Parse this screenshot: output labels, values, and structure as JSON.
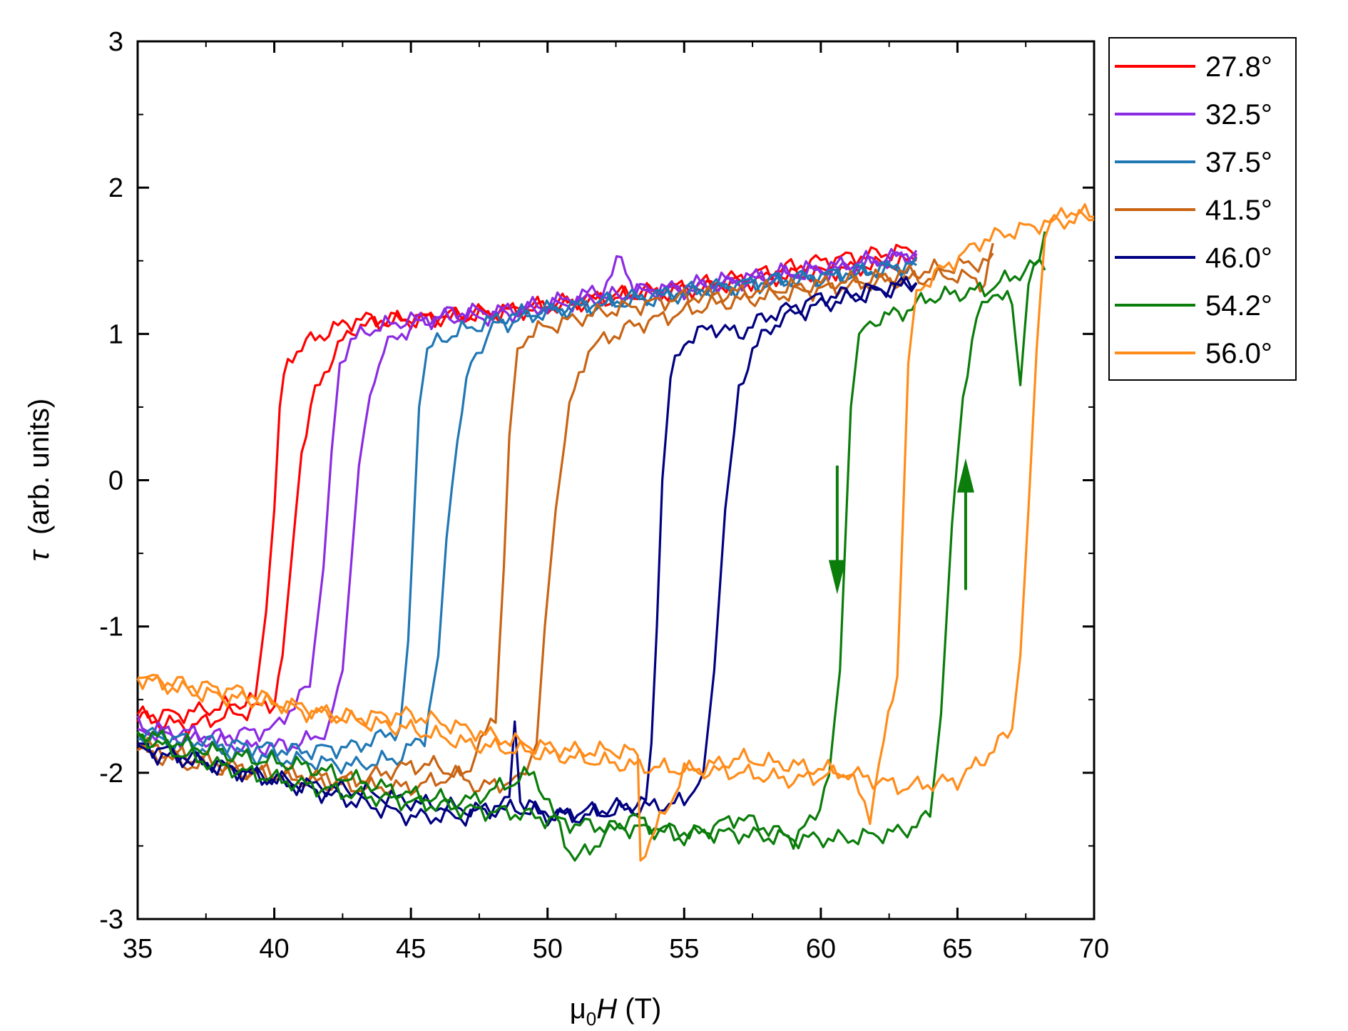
{
  "chart_data": {
    "type": "line",
    "title": "",
    "xlabel": {
      "prefix": "μ",
      "sub": "0",
      "italic": "H",
      "suffix": " (T)"
    },
    "ylabel": {
      "italic": "τ",
      "suffix": "  (arb. units)"
    },
    "xlim": [
      35,
      70
    ],
    "ylim": [
      -3,
      3
    ],
    "xticks": [
      35,
      40,
      45,
      50,
      55,
      60,
      65,
      70
    ],
    "yticks": [
      -3,
      -2,
      -1,
      0,
      1,
      2,
      3
    ],
    "xtick_labels": [
      "35",
      "40",
      "45",
      "50",
      "55",
      "60",
      "65",
      "70"
    ],
    "ytick_labels": [
      "-3",
      "-2",
      "-1",
      "0",
      "1",
      "2",
      "3"
    ],
    "grid": false,
    "legend_position": "outside-top-right",
    "series": [
      {
        "name": "27.8°",
        "color": "#ff0000",
        "up": {
          "x": [
            35,
            36,
            37,
            38,
            39,
            40,
            40.3,
            40.6,
            41,
            41.5,
            42,
            42.5,
            43,
            44,
            45,
            47,
            50,
            53,
            56,
            58,
            60,
            62,
            63.5
          ],
          "y": [
            -1.62,
            -1.66,
            -1.68,
            -1.62,
            -1.58,
            -1.52,
            -1.2,
            -0.6,
            0.2,
            0.6,
            0.8,
            0.95,
            1.05,
            1.08,
            1.1,
            1.12,
            1.18,
            1.26,
            1.32,
            1.38,
            1.42,
            1.47,
            1.5
          ]
        },
        "down": {
          "x": [
            63.5,
            60,
            56,
            52,
            48,
            45,
            43,
            42,
            41,
            40.5,
            40.2,
            40,
            39.7,
            39.3,
            38,
            36.5,
            35
          ],
          "y": [
            1.58,
            1.5,
            1.35,
            1.25,
            1.15,
            1.1,
            1.1,
            1.02,
            0.92,
            0.82,
            0.5,
            -0.2,
            -0.9,
            -1.5,
            -1.55,
            -1.6,
            -1.6
          ]
        }
      },
      {
        "name": "32.5°",
        "color": "#8b2be2",
        "up": {
          "x": [
            35,
            36,
            37.5,
            39,
            40,
            41,
            42,
            42.5,
            42.8,
            43.1,
            43.5,
            44,
            45,
            46.5,
            48,
            50,
            52,
            52.7,
            53.2,
            55,
            58,
            61,
            63.5
          ],
          "y": [
            -1.68,
            -1.75,
            -1.78,
            -1.83,
            -1.82,
            -1.8,
            -1.7,
            -1.3,
            -0.6,
            0.1,
            0.6,
            0.9,
            1.05,
            1.15,
            1.15,
            1.2,
            1.3,
            1.52,
            1.3,
            1.3,
            1.38,
            1.45,
            1.55
          ]
        },
        "down": {
          "x": [
            63.5,
            60,
            56,
            52,
            48,
            45,
            43.5,
            42.8,
            42.4,
            42.1,
            41.8,
            41.3,
            40,
            38,
            36.5,
            35
          ],
          "y": [
            1.55,
            1.45,
            1.35,
            1.25,
            1.12,
            1.1,
            1.03,
            0.95,
            0.8,
            0.2,
            -0.6,
            -1.4,
            -1.7,
            -1.75,
            -1.72,
            -1.7
          ]
        }
      },
      {
        "name": "37.5°",
        "color": "#1f77b4",
        "up": {
          "x": [
            35,
            37,
            39,
            41,
            43,
            44.5,
            45.5,
            46,
            46.3,
            46.7,
            47.2,
            48,
            50,
            53,
            56,
            59,
            61,
            63.5
          ],
          "y": [
            -1.75,
            -1.82,
            -1.88,
            -1.92,
            -1.95,
            -1.9,
            -1.75,
            -1.2,
            -0.4,
            0.3,
            0.8,
            1.05,
            1.15,
            1.22,
            1.3,
            1.36,
            1.4,
            1.47
          ]
        },
        "down": {
          "x": [
            63.5,
            60,
            56,
            52,
            48.5,
            46.5,
            45.6,
            45.3,
            45.1,
            44.9,
            44.6,
            43,
            41,
            39,
            37,
            35
          ],
          "y": [
            1.47,
            1.4,
            1.32,
            1.22,
            1.12,
            1.0,
            0.9,
            0.5,
            -0.3,
            -1.1,
            -1.7,
            -1.82,
            -1.85,
            -1.82,
            -1.78,
            -1.72
          ]
        }
      },
      {
        "name": "41.5°",
        "color": "#c86414",
        "up": {
          "x": [
            35,
            37,
            39,
            41,
            43,
            45,
            46,
            47.5,
            49,
            49.6,
            49.9,
            50.3,
            50.8,
            51.5,
            53,
            56,
            59,
            62,
            65,
            66,
            66.3
          ],
          "y": [
            -1.8,
            -1.9,
            -1.98,
            -2.02,
            -2.05,
            -1.95,
            -1.95,
            -2.1,
            -2.05,
            -1.8,
            -1.0,
            -0.2,
            0.5,
            0.9,
            1.05,
            1.2,
            1.28,
            1.35,
            1.4,
            1.35,
            1.62
          ]
        },
        "down": {
          "x": [
            66.3,
            62,
            58,
            55,
            52,
            50,
            49.3,
            48.9,
            48.6,
            48.4,
            48.1,
            47,
            45,
            43,
            41,
            39,
            37,
            35
          ],
          "y": [
            1.5,
            1.38,
            1.3,
            1.25,
            1.15,
            1.05,
            1.0,
            0.9,
            0.3,
            -0.6,
            -1.6,
            -2.0,
            -2.1,
            -2.1,
            -2.05,
            -2.0,
            -1.95,
            -1.85
          ]
        }
      },
      {
        "name": "46.0°",
        "color": "#000080",
        "up": {
          "x": [
            35,
            37,
            39,
            41,
            43,
            45,
            47,
            49,
            51,
            53,
            55,
            55.7,
            56.1,
            56.5,
            57,
            57.5,
            58.5,
            60,
            62,
            63.5
          ],
          "y": [
            -1.85,
            -1.92,
            -2.0,
            -2.08,
            -2.12,
            -2.2,
            -2.25,
            -2.25,
            -2.3,
            -2.25,
            -2.2,
            -2.0,
            -1.3,
            -0.2,
            0.6,
            0.9,
            1.1,
            1.2,
            1.28,
            1.35
          ]
        },
        "down": {
          "x": [
            63.5,
            60,
            58,
            57,
            56,
            55,
            54.5,
            54.2,
            54.0,
            53.8,
            53.6,
            52,
            50,
            49,
            48.8,
            48.6,
            47,
            45,
            43,
            41,
            39,
            37,
            35
          ],
          "y": [
            1.35,
            1.25,
            1.12,
            1.0,
            1.05,
            0.95,
            0.7,
            0.0,
            -1.0,
            -1.8,
            -2.2,
            -2.25,
            -2.3,
            -2.2,
            -1.65,
            -2.2,
            -2.3,
            -2.3,
            -2.2,
            -2.1,
            -2.0,
            -1.9,
            -1.8
          ]
        }
      },
      {
        "name": "54.2°",
        "color": "#0a7d0a",
        "up": {
          "x": [
            35,
            37,
            39,
            41,
            43,
            45,
            47,
            49,
            51,
            53,
            55,
            57,
            59,
            61,
            63,
            64,
            64.4,
            64.8,
            65.2,
            65.7,
            66.3,
            67,
            67.3,
            67.6,
            68,
            68.2
          ],
          "y": [
            -1.75,
            -1.9,
            -2.0,
            -2.08,
            -2.15,
            -2.2,
            -2.25,
            -2.28,
            -2.35,
            -2.38,
            -2.4,
            -2.42,
            -2.45,
            -2.45,
            -2.4,
            -2.3,
            -1.6,
            -0.3,
            0.6,
            1.1,
            1.3,
            1.2,
            0.65,
            1.35,
            1.5,
            1.7
          ]
        },
        "down": {
          "x": [
            68.2,
            66,
            64,
            63,
            62,
            61.4,
            61.1,
            60.9,
            60.7,
            60.3,
            59.8,
            59,
            57,
            55,
            53,
            51,
            49.5,
            47,
            45,
            43,
            41,
            39,
            37,
            35
          ],
          "y": [
            1.5,
            1.3,
            1.25,
            1.15,
            1.1,
            1.0,
            0.5,
            -0.4,
            -1.3,
            -2.0,
            -2.3,
            -2.45,
            -2.3,
            -2.45,
            -2.3,
            -2.6,
            -2.0,
            -2.2,
            -2.15,
            -2.05,
            -1.95,
            -1.9,
            -1.82,
            -1.72
          ]
        }
      },
      {
        "name": "56.0°",
        "color": "#ff8c1a",
        "up": {
          "x": [
            35,
            37,
            39,
            41,
            43,
            45,
            47,
            49,
            51,
            53,
            55,
            57,
            59,
            61,
            63,
            65,
            66,
            67,
            67.3,
            67.6,
            67.9,
            68.2,
            69,
            70
          ],
          "y": [
            -1.35,
            -1.45,
            -1.5,
            -1.55,
            -1.65,
            -1.7,
            -1.8,
            -1.85,
            -1.9,
            -1.95,
            -1.98,
            -2.0,
            -2.05,
            -2.0,
            -2.1,
            -2.05,
            -1.9,
            -1.7,
            -1.2,
            -0.2,
            0.9,
            1.7,
            1.85,
            1.8
          ]
        },
        "down": {
          "x": [
            70,
            68,
            66,
            64.5,
            63.5,
            63.2,
            63.0,
            62.8,
            62.3,
            61.8,
            61,
            59,
            57,
            55,
            53.4,
            53.3,
            53,
            51,
            49,
            47,
            45,
            43,
            41,
            39,
            37,
            35
          ],
          "y": [
            1.8,
            1.75,
            1.65,
            1.45,
            1.3,
            0.8,
            -0.3,
            -1.3,
            -1.8,
            -2.28,
            -2.0,
            -1.95,
            -1.9,
            -2.0,
            -2.6,
            -1.9,
            -1.85,
            -1.85,
            -1.8,
            -1.7,
            -1.6,
            -1.62,
            -1.58,
            -1.45,
            -1.4,
            -1.35
          ]
        }
      }
    ],
    "annotations": [
      {
        "type": "arrow",
        "direction": "down",
        "color": "#0a7d0a",
        "x": 60.6,
        "y_from": 0.1,
        "y_to": -0.78
      },
      {
        "type": "arrow",
        "direction": "up",
        "color": "#0a7d0a",
        "x": 65.3,
        "y_from": -0.75,
        "y_to": 0.15
      }
    ]
  }
}
